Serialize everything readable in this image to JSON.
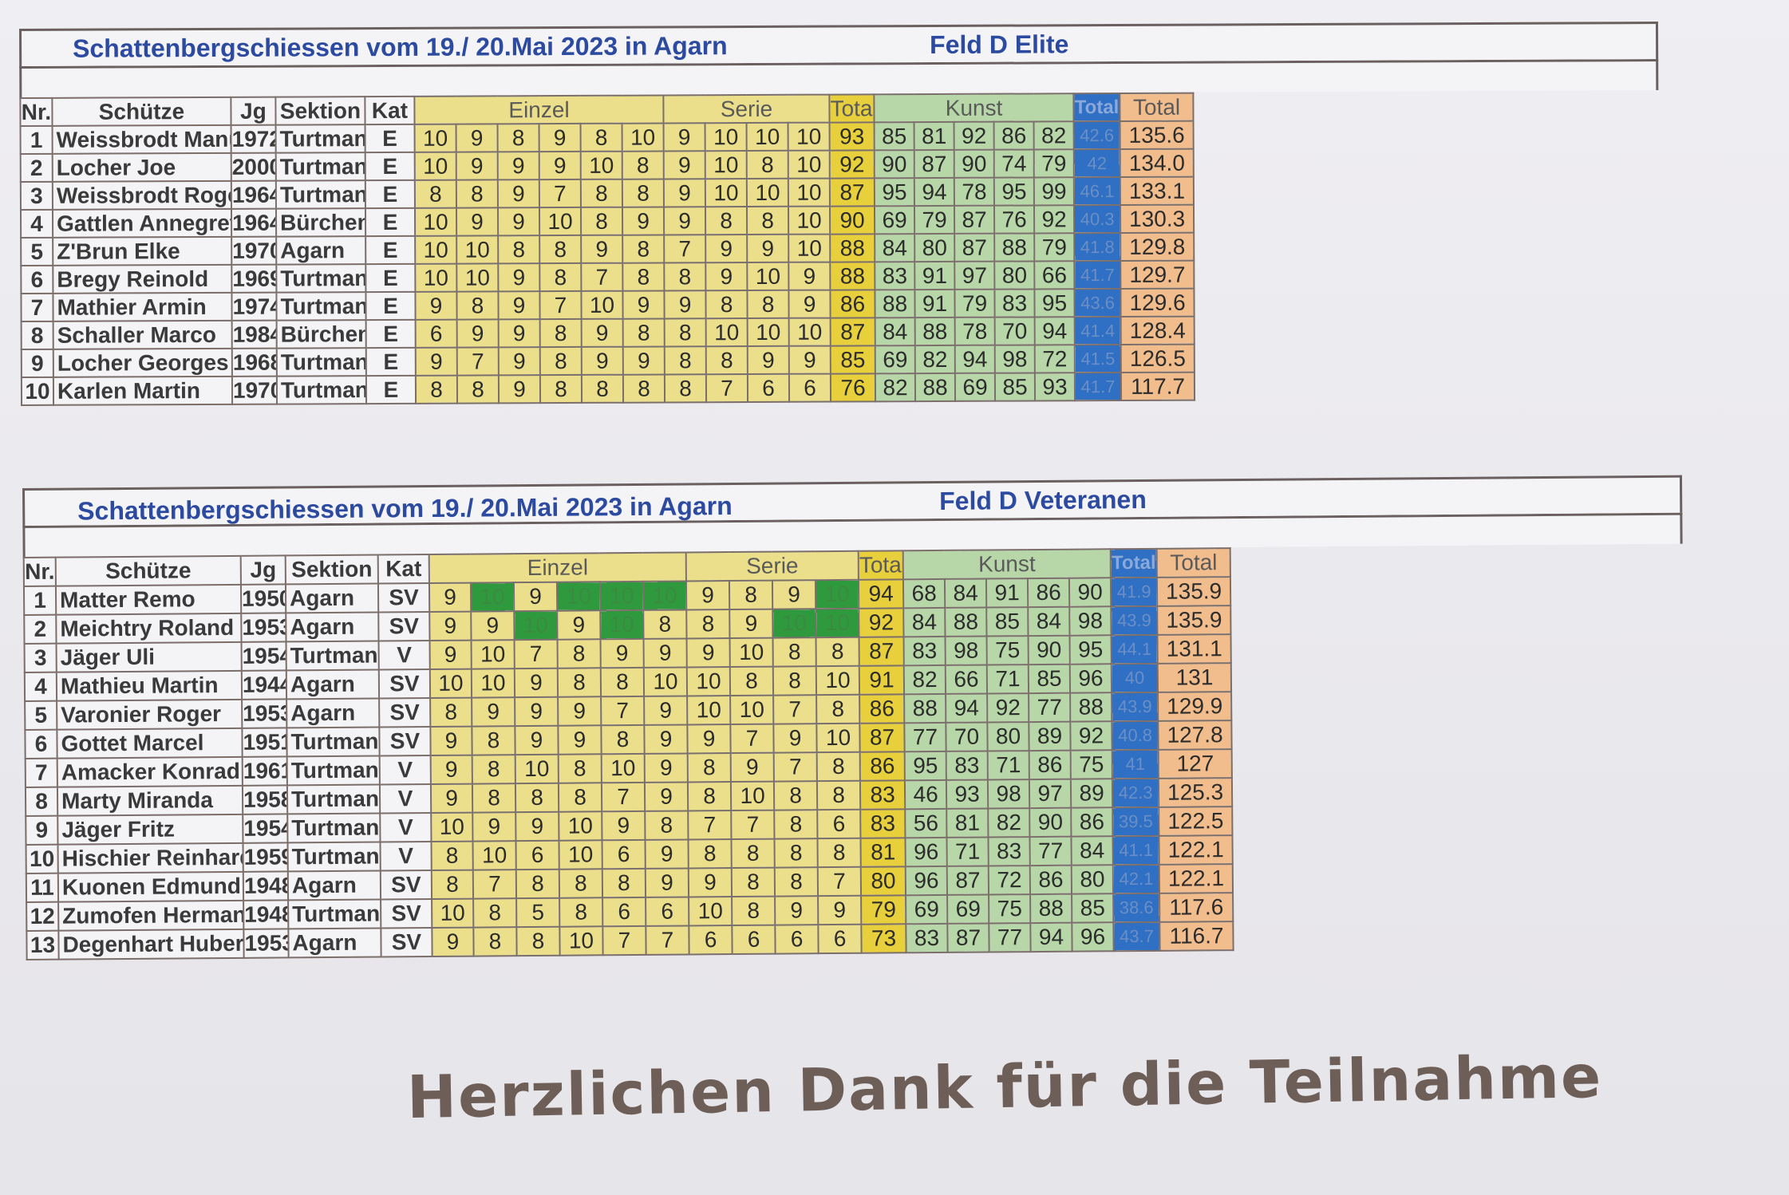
{
  "table1": {
    "title": "Schattenbergschiessen vom 19./ 20.Mai 2023 in Agarn",
    "field": "Feld D Elite",
    "headers": {
      "nr": "Nr.",
      "name": "Schütze",
      "jg": "Jg",
      "sektion": "Sektion",
      "kat": "Kat",
      "einzel": "Einzel",
      "serie": "Serie",
      "total": "Total",
      "kunst": "Kunst",
      "total_kunst": "Total",
      "total_final": "Total"
    },
    "rows": [
      {
        "nr": "1",
        "name": "Weissbrodt Manuela",
        "jg": "1972",
        "sektion": "Turtmann",
        "kat": "E",
        "scores": [
          "10",
          "9",
          "8",
          "9",
          "8",
          "10",
          "9",
          "10",
          "10",
          "10"
        ],
        "total": "93",
        "kunst": [
          "85",
          "81",
          "92",
          "86",
          "82"
        ],
        "ktotal": "42.6",
        "final": "135.6"
      },
      {
        "nr": "2",
        "name": "Locher Joe",
        "jg": "2000",
        "sektion": "Turtmann",
        "kat": "E",
        "scores": [
          "10",
          "9",
          "9",
          "9",
          "10",
          "8",
          "9",
          "10",
          "8",
          "10"
        ],
        "total": "92",
        "kunst": [
          "90",
          "87",
          "90",
          "74",
          "79"
        ],
        "ktotal": "42",
        "final": "134.0"
      },
      {
        "nr": "3",
        "name": "Weissbrodt Roger",
        "jg": "1964",
        "sektion": "Turtmann",
        "kat": "E",
        "scores": [
          "8",
          "8",
          "9",
          "7",
          "8",
          "8",
          "9",
          "10",
          "10",
          "10"
        ],
        "total": "87",
        "kunst": [
          "95",
          "94",
          "78",
          "95",
          "99"
        ],
        "ktotal": "46.1",
        "final": "133.1"
      },
      {
        "nr": "4",
        "name": "Gattlen Annegret",
        "jg": "1964",
        "sektion": "Bürchen",
        "kat": "E",
        "scores": [
          "10",
          "9",
          "9",
          "10",
          "8",
          "9",
          "9",
          "8",
          "8",
          "10"
        ],
        "total": "90",
        "kunst": [
          "69",
          "79",
          "87",
          "76",
          "92"
        ],
        "ktotal": "40.3",
        "final": "130.3"
      },
      {
        "nr": "5",
        "name": "Z'Brun Elke",
        "jg": "1970",
        "sektion": "Agarn",
        "kat": "E",
        "scores": [
          "10",
          "10",
          "8",
          "8",
          "9",
          "8",
          "7",
          "9",
          "9",
          "10"
        ],
        "total": "88",
        "kunst": [
          "84",
          "80",
          "87",
          "88",
          "79"
        ],
        "ktotal": "41.8",
        "final": "129.8"
      },
      {
        "nr": "6",
        "name": "Bregy Reinold",
        "jg": "1969",
        "sektion": "Turtmann",
        "kat": "E",
        "scores": [
          "10",
          "10",
          "9",
          "8",
          "7",
          "8",
          "8",
          "9",
          "10",
          "9"
        ],
        "total": "88",
        "kunst": [
          "83",
          "91",
          "97",
          "80",
          "66"
        ],
        "ktotal": "41.7",
        "final": "129.7"
      },
      {
        "nr": "7",
        "name": "Mathier Armin",
        "jg": "1974",
        "sektion": "Turtmann",
        "kat": "E",
        "scores": [
          "9",
          "8",
          "9",
          "7",
          "10",
          "9",
          "9",
          "8",
          "8",
          "9"
        ],
        "total": "86",
        "kunst": [
          "88",
          "91",
          "79",
          "83",
          "95"
        ],
        "ktotal": "43.6",
        "final": "129.6"
      },
      {
        "nr": "8",
        "name": "Schaller Marco",
        "jg": "1984",
        "sektion": "Bürchen",
        "kat": "E",
        "scores": [
          "6",
          "9",
          "9",
          "8",
          "9",
          "8",
          "8",
          "10",
          "10",
          "10"
        ],
        "total": "87",
        "kunst": [
          "84",
          "88",
          "78",
          "70",
          "94"
        ],
        "ktotal": "41.4",
        "final": "128.4"
      },
      {
        "nr": "9",
        "name": "Locher Georges",
        "jg": "1968",
        "sektion": "Turtmann",
        "kat": "E",
        "scores": [
          "9",
          "7",
          "9",
          "8",
          "9",
          "9",
          "8",
          "8",
          "9",
          "9"
        ],
        "total": "85",
        "kunst": [
          "69",
          "82",
          "94",
          "98",
          "72"
        ],
        "ktotal": "41.5",
        "final": "126.5"
      },
      {
        "nr": "10",
        "name": "Karlen Martin",
        "jg": "1970",
        "sektion": "Turtmann",
        "kat": "E",
        "scores": [
          "8",
          "8",
          "9",
          "8",
          "8",
          "8",
          "8",
          "7",
          "6",
          "6"
        ],
        "total": "76",
        "kunst": [
          "82",
          "88",
          "69",
          "85",
          "93"
        ],
        "ktotal": "41.7",
        "final": "117.7"
      }
    ]
  },
  "table2": {
    "title": "Schattenbergschiessen vom 19./ 20.Mai 2023 in Agarn",
    "field": "Feld D Veteranen",
    "headers": {
      "nr": "Nr.",
      "name": "Schütze",
      "jg": "Jg",
      "sektion": "Sektion",
      "kat": "Kat",
      "einzel": "Einzel",
      "serie": "Serie",
      "total": "Total",
      "kunst": "Kunst",
      "total_kunst": "Total",
      "total_final": "Total"
    },
    "rows": [
      {
        "nr": "1",
        "name": "Matter Remo",
        "jg": "1950",
        "sektion": "Agarn",
        "kat": "SV",
        "scores": [
          "9",
          "10",
          "9",
          "10",
          "10",
          "10",
          "9",
          "8",
          "9",
          "10"
        ],
        "total": "94",
        "kunst": [
          "68",
          "84",
          "91",
          "86",
          "90"
        ],
        "ktotal": "41.9",
        "final": "135.9"
      },
      {
        "nr": "2",
        "name": "Meichtry Roland",
        "jg": "1953",
        "sektion": "Agarn",
        "kat": "SV",
        "scores": [
          "9",
          "9",
          "10",
          "9",
          "10",
          "8",
          "8",
          "9",
          "10",
          "10"
        ],
        "total": "92",
        "kunst": [
          "84",
          "88",
          "85",
          "84",
          "98"
        ],
        "ktotal": "43.9",
        "final": "135.9"
      },
      {
        "nr": "3",
        "name": "Jäger Uli",
        "jg": "1954",
        "sektion": "Turtmann",
        "kat": "V",
        "scores": [
          "9",
          "10",
          "7",
          "8",
          "9",
          "9",
          "9",
          "10",
          "8",
          "8"
        ],
        "total": "87",
        "kunst": [
          "83",
          "98",
          "75",
          "90",
          "95"
        ],
        "ktotal": "44.1",
        "final": "131.1"
      },
      {
        "nr": "4",
        "name": "Mathieu Martin",
        "jg": "1944",
        "sektion": "Agarn",
        "kat": "SV",
        "scores": [
          "10",
          "10",
          "9",
          "8",
          "8",
          "10",
          "10",
          "8",
          "8",
          "10"
        ],
        "total": "91",
        "kunst": [
          "82",
          "66",
          "71",
          "85",
          "96"
        ],
        "ktotal": "40",
        "final": "131"
      },
      {
        "nr": "5",
        "name": "Varonier Roger",
        "jg": "1953",
        "sektion": "Agarn",
        "kat": "SV",
        "scores": [
          "8",
          "9",
          "9",
          "9",
          "7",
          "9",
          "10",
          "10",
          "7",
          "8"
        ],
        "total": "86",
        "kunst": [
          "88",
          "94",
          "92",
          "77",
          "88"
        ],
        "ktotal": "43.9",
        "final": "129.9"
      },
      {
        "nr": "6",
        "name": "Gottet Marcel",
        "jg": "1951",
        "sektion": "Turtmann",
        "kat": "SV",
        "scores": [
          "9",
          "8",
          "9",
          "9",
          "8",
          "9",
          "9",
          "7",
          "9",
          "10"
        ],
        "total": "87",
        "kunst": [
          "77",
          "70",
          "80",
          "89",
          "92"
        ],
        "ktotal": "40.8",
        "final": "127.8"
      },
      {
        "nr": "7",
        "name": "Amacker Konrad",
        "jg": "1961",
        "sektion": "Turtmann",
        "kat": "V",
        "scores": [
          "9",
          "8",
          "10",
          "8",
          "10",
          "9",
          "8",
          "9",
          "7",
          "8"
        ],
        "total": "86",
        "kunst": [
          "95",
          "83",
          "71",
          "86",
          "75"
        ],
        "ktotal": "41",
        "final": "127"
      },
      {
        "nr": "8",
        "name": "Marty Miranda",
        "jg": "1958",
        "sektion": "Turtmann",
        "kat": "V",
        "scores": [
          "9",
          "8",
          "8",
          "8",
          "7",
          "9",
          "8",
          "10",
          "8",
          "8"
        ],
        "total": "83",
        "kunst": [
          "46",
          "93",
          "98",
          "97",
          "89"
        ],
        "ktotal": "42.3",
        "final": "125.3"
      },
      {
        "nr": "9",
        "name": "Jäger Fritz",
        "jg": "1954",
        "sektion": "Turtmann",
        "kat": "V",
        "scores": [
          "10",
          "9",
          "9",
          "10",
          "9",
          "8",
          "7",
          "7",
          "8",
          "6"
        ],
        "total": "83",
        "kunst": [
          "56",
          "81",
          "82",
          "90",
          "86"
        ],
        "ktotal": "39.5",
        "final": "122.5"
      },
      {
        "nr": "10",
        "name": "Hischier Reinhard",
        "jg": "1959",
        "sektion": "Turtmann",
        "kat": "V",
        "scores": [
          "8",
          "10",
          "6",
          "10",
          "6",
          "9",
          "8",
          "8",
          "8",
          "8"
        ],
        "total": "81",
        "kunst": [
          "96",
          "71",
          "83",
          "77",
          "84"
        ],
        "ktotal": "41.1",
        "final": "122.1"
      },
      {
        "nr": "11",
        "name": "Kuonen Edmund",
        "jg": "1948",
        "sektion": "Agarn",
        "kat": "SV",
        "scores": [
          "8",
          "7",
          "8",
          "8",
          "8",
          "9",
          "9",
          "8",
          "8",
          "7"
        ],
        "total": "80",
        "kunst": [
          "96",
          "87",
          "72",
          "86",
          "80"
        ],
        "ktotal": "42.1",
        "final": "122.1"
      },
      {
        "nr": "12",
        "name": "Zumofen Hermann",
        "jg": "1948",
        "sektion": "Turtmann",
        "kat": "SV",
        "scores": [
          "10",
          "8",
          "5",
          "8",
          "6",
          "6",
          "10",
          "8",
          "9",
          "9"
        ],
        "total": "79",
        "kunst": [
          "69",
          "69",
          "75",
          "88",
          "85"
        ],
        "ktotal": "38.6",
        "final": "117.6"
      },
      {
        "nr": "13",
        "name": "Degenhart Hubert",
        "jg": "1953",
        "sektion": "Agarn",
        "kat": "SV",
        "scores": [
          "9",
          "8",
          "8",
          "10",
          "7",
          "7",
          "6",
          "6",
          "6",
          "6"
        ],
        "total": "73",
        "kunst": [
          "83",
          "87",
          "77",
          "94",
          "96"
        ],
        "ktotal": "43.7",
        "final": "116.7"
      }
    ],
    "highlight_cells": {
      "0": [
        1,
        3,
        4,
        5,
        9
      ],
      "1": [
        2,
        4,
        8,
        9
      ]
    }
  },
  "footer": {
    "thanks": "Herzlichen Dank für die Teilnahme"
  },
  "colors": {
    "einzel": "#ecdf8c",
    "total": "#e8cf3c",
    "kunst": "#b7d7a8",
    "kunst_total": "#2f6fc4",
    "final": "#f2bd8d",
    "highlight": "#2f9a3d",
    "title": "#2b4aa0"
  }
}
